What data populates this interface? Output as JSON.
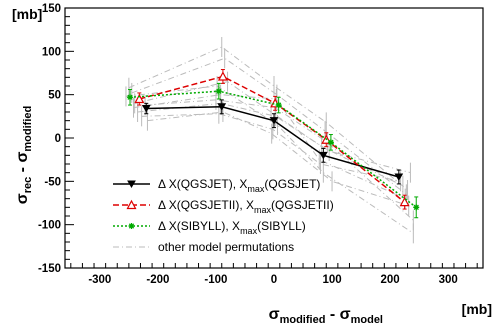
{
  "chart_data": {
    "type": "line",
    "xlabel": {
      "main": "σ",
      "sub1": "modified",
      "mid": " - σ",
      "sub2": "model"
    },
    "ylabel": {
      "main": "σ",
      "sub1": "rec",
      "mid": " - σ",
      "sub2": "modified"
    },
    "x_unit": "[mb]",
    "y_unit": "[mb]",
    "xlim": [
      -360,
      360
    ],
    "ylim": [
      -150,
      150
    ],
    "x_ticks": [
      -300,
      -200,
      -100,
      0,
      100,
      200,
      300
    ],
    "y_ticks": [
      -150,
      -100,
      -50,
      0,
      50,
      100,
      150
    ],
    "grid": false,
    "legend_position": "lower-left",
    "series": [
      {
        "name": "QGSJET",
        "legend_parts": {
          "a": "Δ X(QGSJET), X",
          "sub": "max",
          "b": "(QGSJET)"
        },
        "color": "#000000",
        "style": "solid",
        "marker": "triangle-down",
        "x": [
          -220,
          -90,
          0,
          85,
          215
        ],
        "y": [
          34,
          36,
          20,
          -20,
          -45
        ],
        "err": [
          6,
          8,
          8,
          8,
          8
        ]
      },
      {
        "name": "QGSJETII",
        "legend_parts": {
          "a": "Δ X(QGSJETII), X",
          "sub": "max",
          "b": "(QGSJETII)"
        },
        "color": "#dd0000",
        "style": "dashed",
        "marker": "triangle-open",
        "x": [
          -232,
          -88,
          2,
          90,
          225
        ],
        "y": [
          45,
          71,
          40,
          -2,
          -74
        ],
        "err": [
          7,
          8,
          8,
          8,
          8
        ]
      },
      {
        "name": "SIBYLL",
        "legend_parts": {
          "a": "Δ X(SIBYLL), X",
          "sub": "max",
          "b": "(SIBYLL)"
        },
        "color": "#00aa00",
        "style": "dotted",
        "marker": "star",
        "x": [
          -248,
          -95,
          8,
          98,
          245
        ],
        "y": [
          47,
          54,
          38,
          -5,
          -80
        ],
        "err": [
          9,
          9,
          9,
          9,
          12
        ]
      }
    ],
    "other_permutations": {
      "name": "other model permutations",
      "color": "#bbbbbb",
      "lines": [
        {
          "x": [
            -250,
            -90,
            0,
            90,
            230
          ],
          "y": [
            58,
            105,
            60,
            18,
            -60
          ]
        },
        {
          "x": [
            -245,
            -85,
            5,
            88,
            228
          ],
          "y": [
            52,
            92,
            50,
            8,
            -65
          ]
        },
        {
          "x": [
            -240,
            -80,
            -5,
            82,
            222
          ],
          "y": [
            40,
            65,
            30,
            -10,
            -55
          ]
        },
        {
          "x": [
            -235,
            -92,
            3,
            95,
            235
          ],
          "y": [
            30,
            40,
            25,
            -15,
            -40
          ]
        },
        {
          "x": [
            -228,
            -95,
            -2,
            80,
            218
          ],
          "y": [
            25,
            28,
            10,
            -30,
            -50
          ]
        },
        {
          "x": [
            -222,
            -100,
            2,
            92,
            240
          ],
          "y": [
            38,
            44,
            35,
            -5,
            -95
          ]
        },
        {
          "x": [
            -255,
            -98,
            6,
            85,
            240
          ],
          "y": [
            48,
            60,
            15,
            -40,
            -110
          ]
        },
        {
          "x": [
            -218,
            -88,
            -4,
            100,
            232
          ],
          "y": [
            20,
            30,
            5,
            -50,
            -78
          ]
        },
        {
          "x": [
            -242,
            -92,
            4,
            78,
            226
          ],
          "y": [
            35,
            50,
            45,
            -25,
            -70
          ]
        }
      ]
    }
  }
}
